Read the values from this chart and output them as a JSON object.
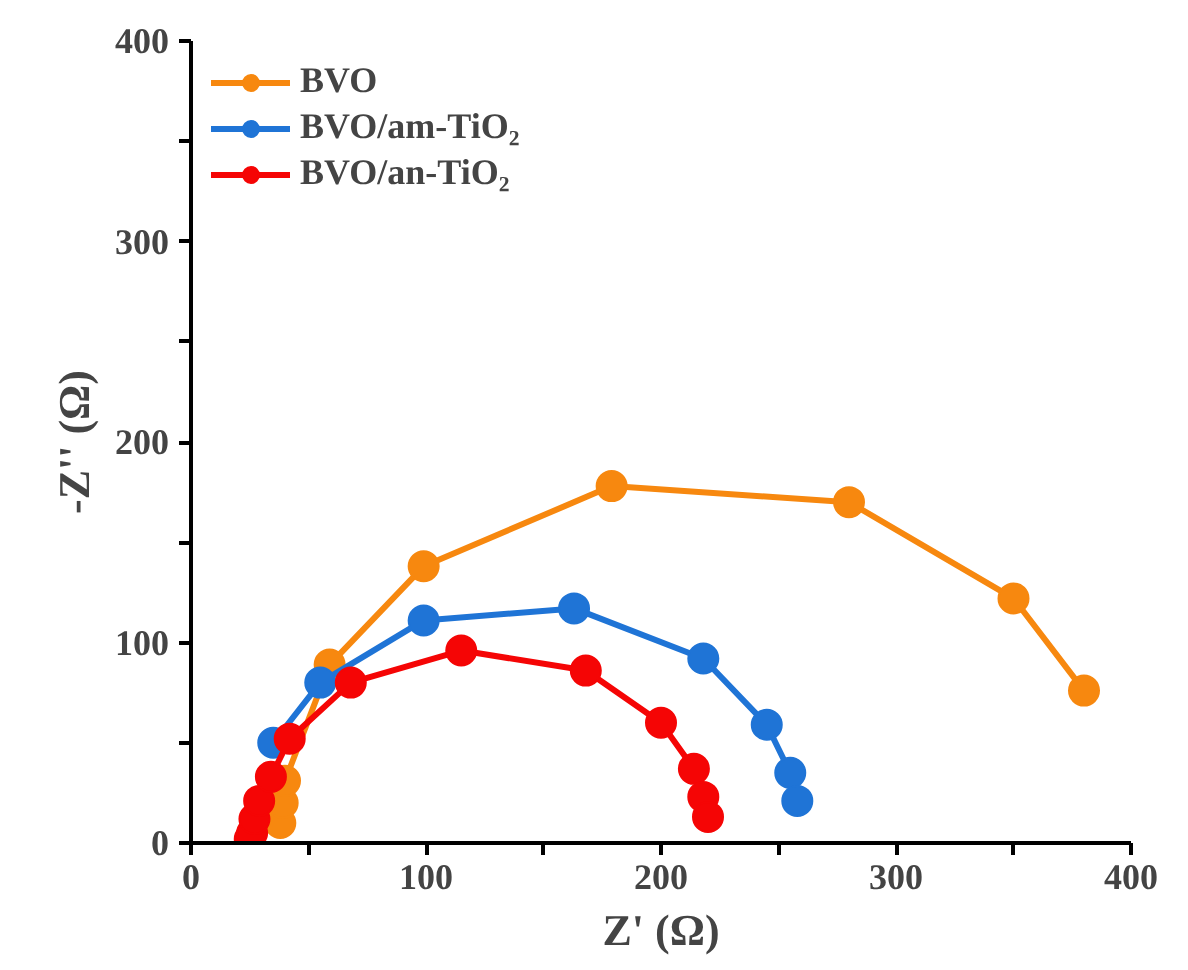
{
  "chart_data": {
    "type": "line",
    "xlabel": "Z' (Ω)",
    "ylabel": "-Z'' (Ω)",
    "marker": "circle",
    "legend": "top left",
    "grid": false,
    "xlim": [
      0,
      400
    ],
    "ylim": [
      0,
      400
    ],
    "xticks": [
      0,
      {
        "value": 50,
        "label": null
      },
      100,
      {
        "value": 150,
        "label": null
      },
      200,
      {
        "value": 250,
        "label": null
      },
      300,
      {
        "value": 350,
        "label": null
      },
      400
    ],
    "yticks": [
      0,
      {
        "value": 50,
        "label": null
      },
      100,
      {
        "value": 150,
        "label": null
      },
      200,
      {
        "value": 250,
        "label": null
      },
      300,
      {
        "value": 350,
        "label": null
      },
      400
    ],
    "series": [
      {
        "name": "BVO",
        "color": "#f7880f",
        "x": [
          38,
          39,
          40,
          59,
          99,
          179,
          280,
          350,
          380
        ],
        "values": [
          10,
          20,
          31,
          89,
          138,
          178,
          170,
          122,
          76
        ]
      },
      {
        "name": "BVO/am-TiO₂",
        "color": "#1f74d6",
        "x": [
          35,
          55,
          99,
          163,
          218,
          245,
          255,
          258
        ],
        "values": [
          50,
          80,
          111,
          117,
          92,
          59,
          35,
          21
        ]
      },
      {
        "name": "BVO/an-TiO₂",
        "color": "#f50505",
        "x": [
          25,
          26,
          27,
          29,
          34,
          42,
          68,
          115,
          168,
          200,
          214,
          218,
          220
        ],
        "values": [
          2,
          5,
          12,
          21,
          33,
          52,
          80,
          96,
          86,
          60,
          37,
          23,
          13
        ]
      }
    ]
  }
}
